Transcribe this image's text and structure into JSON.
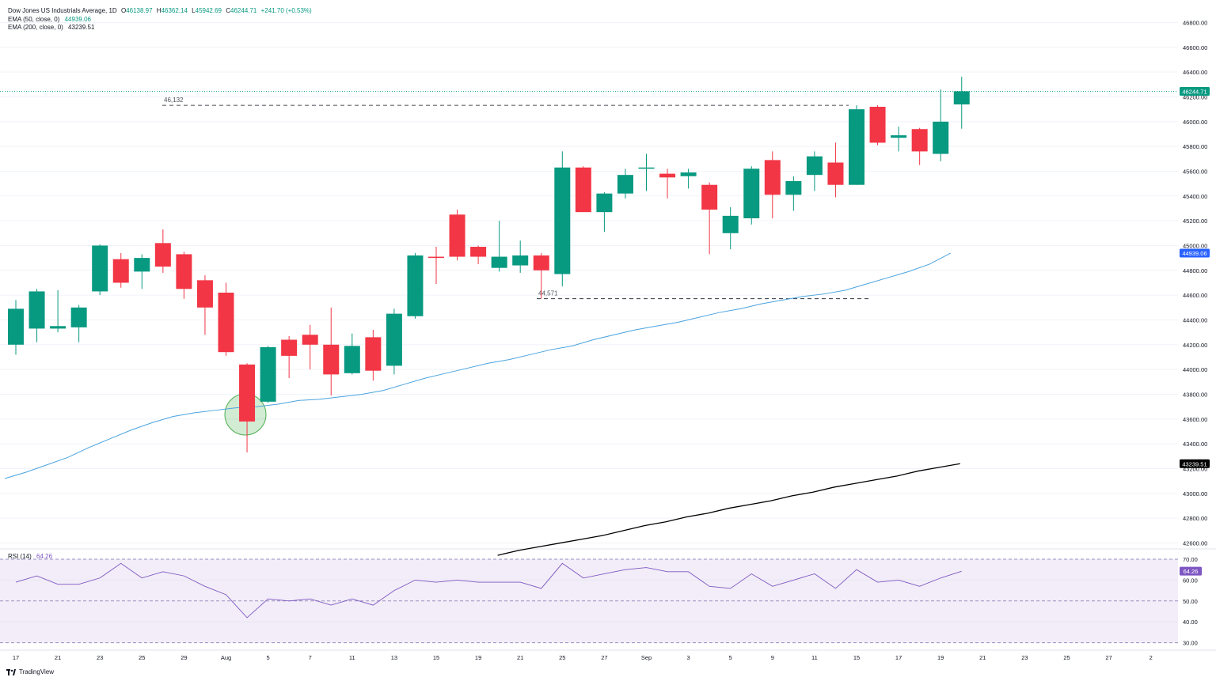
{
  "legend": {
    "title": "Dow Jones US Industrials Average, 1D",
    "open_label": "O",
    "open": "46138.97",
    "high_label": "H",
    "high": "46362.14",
    "low_label": "L",
    "low": "45942.69",
    "close_label": "C",
    "close": "46244.71",
    "change": "+241.70 (+0.53%)",
    "ema50_label": "EMA (50, close, 0)",
    "ema50_value": "44939.06",
    "ema200_label": "EMA (200, close, 0)",
    "ema200_value": "43239.51"
  },
  "rsi_legend": {
    "label": "RSI (14)",
    "value": "64.26"
  },
  "brand": {
    "name": "TradingView"
  },
  "colors": {
    "up": "#089981",
    "down": "#f23645",
    "ema50": "#4aa3df",
    "ema200": "#000000",
    "rsi": "#7e57c2"
  },
  "chart_data": {
    "type": "candlestick",
    "symbol": "Dow Jones US Industrials Average",
    "timeframe": "1D",
    "ylim": [
      42500,
      46900
    ],
    "y_ticks": [
      "46800.00",
      "46600.00",
      "46400.00",
      "46200.00",
      "46000.00",
      "45800.00",
      "45600.00",
      "45400.00",
      "45200.00",
      "45000.00",
      "44800.00",
      "44600.00",
      "44400.00",
      "44200.00",
      "44000.00",
      "43800.00",
      "43600.00",
      "43400.00",
      "43200.00",
      "43000.00",
      "42800.00",
      "42600.00"
    ],
    "x_ticks": [
      "17",
      "21",
      "23",
      "25",
      "29",
      "Aug",
      "5",
      "7",
      "11",
      "13",
      "15",
      "19",
      "21",
      "25",
      "27",
      "Sep",
      "3",
      "5",
      "9",
      "11",
      "15",
      "17",
      "19",
      "21",
      "23",
      "25",
      "27",
      "2"
    ],
    "candles": [
      {
        "o": 44200,
        "h": 44560,
        "l": 44120,
        "c": 44490
      },
      {
        "o": 44330,
        "h": 44650,
        "l": 44220,
        "c": 44630
      },
      {
        "o": 44330,
        "h": 44640,
        "l": 44300,
        "c": 44350
      },
      {
        "o": 44340,
        "h": 44520,
        "l": 44220,
        "c": 44500
      },
      {
        "o": 44630,
        "h": 45010,
        "l": 44600,
        "c": 45000
      },
      {
        "o": 44890,
        "h": 44940,
        "l": 44660,
        "c": 44700
      },
      {
        "o": 44790,
        "h": 44930,
        "l": 44650,
        "c": 44900
      },
      {
        "o": 45020,
        "h": 45130,
        "l": 44780,
        "c": 44830
      },
      {
        "o": 44930,
        "h": 44950,
        "l": 44570,
        "c": 44650
      },
      {
        "o": 44720,
        "h": 44760,
        "l": 44280,
        "c": 44500
      },
      {
        "o": 44620,
        "h": 44700,
        "l": 44110,
        "c": 44140
      },
      {
        "o": 44040,
        "h": 44050,
        "l": 43330,
        "c": 43580
      },
      {
        "o": 43740,
        "h": 44190,
        "l": 43730,
        "c": 44180
      },
      {
        "o": 44240,
        "h": 44270,
        "l": 43930,
        "c": 44110
      },
      {
        "o": 44280,
        "h": 44360,
        "l": 44000,
        "c": 44200
      },
      {
        "o": 44200,
        "h": 44500,
        "l": 43790,
        "c": 43960
      },
      {
        "o": 43970,
        "h": 44290,
        "l": 43960,
        "c": 44190
      },
      {
        "o": 44260,
        "h": 44320,
        "l": 43910,
        "c": 43990
      },
      {
        "o": 44030,
        "h": 44490,
        "l": 43960,
        "c": 44450
      },
      {
        "o": 44430,
        "h": 44940,
        "l": 44410,
        "c": 44920
      },
      {
        "o": 44910,
        "h": 44990,
        "l": 44690,
        "c": 44900
      },
      {
        "o": 45250,
        "h": 45290,
        "l": 44880,
        "c": 44910
      },
      {
        "o": 44990,
        "h": 45000,
        "l": 44850,
        "c": 44910
      },
      {
        "o": 44820,
        "h": 45200,
        "l": 44790,
        "c": 44910
      },
      {
        "o": 44840,
        "h": 45040,
        "l": 44780,
        "c": 44920
      },
      {
        "o": 44920,
        "h": 44940,
        "l": 44571,
        "c": 44800
      },
      {
        "o": 44770,
        "h": 45760,
        "l": 44670,
        "c": 45630
      },
      {
        "o": 45630,
        "h": 45640,
        "l": 45280,
        "c": 45270
      },
      {
        "o": 45270,
        "h": 45430,
        "l": 45110,
        "c": 45420
      },
      {
        "o": 45420,
        "h": 45620,
        "l": 45380,
        "c": 45570
      },
      {
        "o": 45620,
        "h": 45740,
        "l": 45440,
        "c": 45630
      },
      {
        "o": 45580,
        "h": 45620,
        "l": 45380,
        "c": 45550
      },
      {
        "o": 45560,
        "h": 45620,
        "l": 45460,
        "c": 45590
      },
      {
        "o": 45490,
        "h": 45510,
        "l": 44930,
        "c": 45290
      },
      {
        "o": 45100,
        "h": 45310,
        "l": 44970,
        "c": 45240
      },
      {
        "o": 45220,
        "h": 45640,
        "l": 45170,
        "c": 45620
      },
      {
        "o": 45690,
        "h": 45760,
        "l": 45220,
        "c": 45410
      },
      {
        "o": 45410,
        "h": 45560,
        "l": 45280,
        "c": 45520
      },
      {
        "o": 45570,
        "h": 45760,
        "l": 45440,
        "c": 45720
      },
      {
        "o": 45670,
        "h": 45830,
        "l": 45390,
        "c": 45490
      },
      {
        "o": 45490,
        "h": 46132,
        "l": 45490,
        "c": 46100
      },
      {
        "o": 46120,
        "h": 46132,
        "l": 45810,
        "c": 45830
      },
      {
        "o": 45870,
        "h": 45960,
        "l": 45760,
        "c": 45890
      },
      {
        "o": 45940,
        "h": 45950,
        "l": 45650,
        "c": 45760
      },
      {
        "o": 45740,
        "h": 46260,
        "l": 45680,
        "c": 46000
      },
      {
        "o": 46139,
        "h": 46362,
        "l": 45943,
        "c": 46245
      }
    ],
    "ema50": [
      43120,
      43170,
      43230,
      43290,
      43370,
      43440,
      43510,
      43570,
      43620,
      43650,
      43670,
      43690,
      43700,
      43720,
      43750,
      43760,
      43780,
      43800,
      43830,
      43880,
      43930,
      43970,
      44010,
      44050,
      44080,
      44120,
      44160,
      44190,
      44240,
      44280,
      44320,
      44350,
      44380,
      44420,
      44460,
      44490,
      44530,
      44560,
      44590,
      44610,
      44640,
      44690,
      44740,
      44790,
      44850,
      44939
    ],
    "ema200": [
      42500,
      42540,
      42570,
      42600,
      42630,
      42660,
      42700,
      42740,
      42770,
      42810,
      42840,
      42880,
      42910,
      42940,
      42980,
      43010,
      43050,
      43080,
      43110,
      43140,
      43180,
      43210,
      43239.51
    ],
    "ema200_start_index": 23,
    "rsi": [
      59,
      62,
      58,
      58,
      61,
      68,
      61,
      64,
      62,
      57,
      53,
      42,
      51,
      50,
      51,
      48,
      51,
      48,
      55,
      60,
      59,
      60,
      59,
      59,
      59,
      56,
      68,
      61,
      63,
      65,
      66,
      64,
      64,
      57,
      56,
      63,
      57,
      60,
      63,
      56,
      65,
      59,
      60,
      57,
      61,
      64.26
    ],
    "rsi_ylim": [
      27,
      72
    ],
    "rsi_ticks": [
      "70.00",
      "60.00",
      "50.00",
      "40.00",
      "30.00"
    ],
    "levels": [
      {
        "label": "46,132",
        "value": 46132
      },
      {
        "label": "44,571",
        "value": 44571
      }
    ],
    "price_tags": [
      {
        "text": "46244.71",
        "value": 46244.71,
        "bg": "#089981"
      },
      {
        "text": "44939.06",
        "value": 44939.06,
        "bg": "#2962ff"
      },
      {
        "text": "43239.51",
        "value": 43239.51,
        "bg": "#000000"
      }
    ],
    "rsi_tag": {
      "text": "64.26",
      "value": 64.26,
      "bg": "#7e57c2"
    }
  }
}
